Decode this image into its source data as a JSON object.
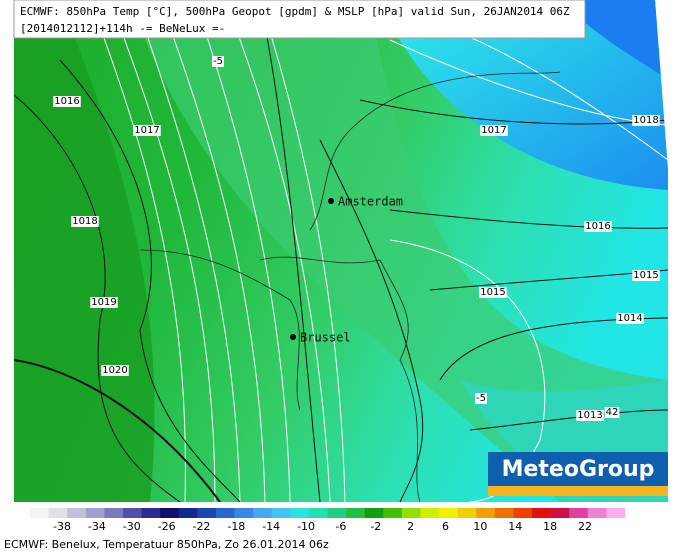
{
  "header": {
    "line1": "ECMWF: 850hPa Temp [°C], 500hPa Geopot [gpdm] & MSLP [hPa] valid Sun, 26JAN2014 06Z",
    "line2": "[2014012112]+114h -= BeNeLux =-"
  },
  "contour_labels": [
    "1016",
    "1017",
    "1018",
    "1019",
    "1020",
    "1017",
    "1018",
    "1016",
    "1015",
    "1015",
    "1014",
    "1013",
    "42",
    "-5",
    "-5"
  ],
  "cities": [
    "Amsterdam",
    "Brussel"
  ],
  "logo": "MeteoGroup",
  "legend": {
    "ticks": [
      -38,
      -34,
      -30,
      -26,
      -22,
      -18,
      -14,
      -10,
      -6,
      -2,
      2,
      6,
      10,
      14,
      18,
      22
    ]
  },
  "footer": "ECMWF: Benelux, Temperatuur 850hPa, Zo 26.01.2014 06z"
}
